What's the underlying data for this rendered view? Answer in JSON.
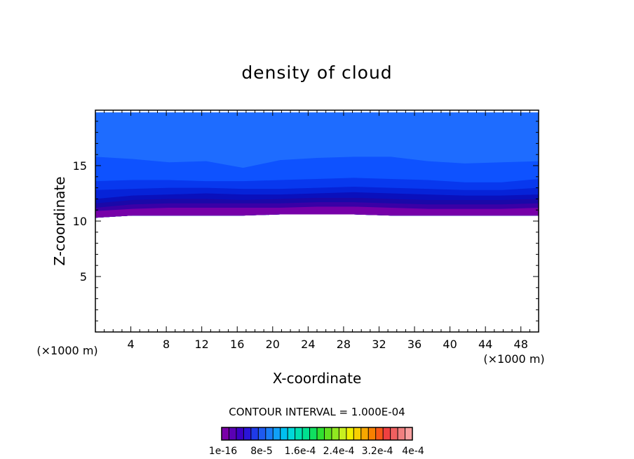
{
  "chart_data": {
    "type": "heatmap",
    "title": "density of cloud",
    "xlabel": "X-coordinate",
    "ylabel": "Z-coordinate",
    "x_unit": "(×1000 m)",
    "y_unit": "(×1000 m)",
    "xlim": [
      0,
      50
    ],
    "ylim": [
      0,
      20
    ],
    "x_ticks": [
      "4",
      "8",
      "12",
      "16",
      "20",
      "24",
      "28",
      "32",
      "36",
      "40",
      "44",
      "48"
    ],
    "y_ticks": [
      "5",
      "10",
      "15"
    ],
    "contour_interval_text": "CONTOUR INTERVAL = 1.000E-04",
    "colorbar_labels": [
      "1e-16",
      "8e-5",
      "1.6e-4",
      "2.4e-4",
      "3.2e-4",
      "4e-4"
    ],
    "colorbar_colors": [
      "#7a00a8",
      "#5a00b4",
      "#3c00c4",
      "#2a14d8",
      "#1f3ae8",
      "#1e5af0",
      "#1a7cf6",
      "#10a0f8",
      "#00c0f0",
      "#00d8d8",
      "#00e0b0",
      "#00e090",
      "#10e060",
      "#30e030",
      "#60e020",
      "#90e820",
      "#c8f020",
      "#f0f000",
      "#f8d000",
      "#f8a800",
      "#f88000",
      "#f85818",
      "#f04040",
      "#f06060",
      "#f08080",
      "#f8a0a0"
    ],
    "bands": [
      {
        "color": "#1e6cff",
        "top": [
          19.8,
          19.8,
          19.8,
          19.8,
          19.8,
          19.8,
          19.8,
          19.8,
          19.8,
          19.8,
          19.8,
          19.8,
          19.8
        ]
      },
      {
        "color": "#0e52ff",
        "top": [
          15.8,
          15.6,
          15.3,
          15.4,
          14.8,
          15.5,
          15.7,
          15.8,
          15.8,
          15.4,
          15.2,
          15.3,
          15.4
        ]
      },
      {
        "color": "#0838ee",
        "top": [
          13.6,
          13.7,
          13.7,
          13.6,
          13.6,
          13.7,
          13.8,
          13.9,
          13.8,
          13.7,
          13.5,
          13.5,
          13.8
        ]
      },
      {
        "color": "#0623d8",
        "top": [
          12.8,
          12.9,
          13.0,
          13.0,
          12.9,
          12.9,
          13.0,
          13.1,
          13.0,
          12.9,
          12.8,
          12.8,
          13.0
        ]
      },
      {
        "color": "#0a10bc",
        "top": [
          12.0,
          12.3,
          12.4,
          12.5,
          12.4,
          12.4,
          12.5,
          12.6,
          12.5,
          12.4,
          12.3,
          12.3,
          12.4
        ]
      },
      {
        "color": "#1a08a8",
        "top": [
          11.6,
          11.9,
          12.0,
          12.0,
          11.9,
          12.0,
          12.1,
          12.1,
          12.0,
          11.9,
          11.9,
          11.9,
          12.0
        ]
      },
      {
        "color": "#3a00a6",
        "top": [
          11.2,
          11.5,
          11.6,
          11.6,
          11.6,
          11.6,
          11.7,
          11.7,
          11.6,
          11.5,
          11.5,
          11.5,
          11.6
        ]
      },
      {
        "color": "#7700a8",
        "top": [
          10.9,
          11.1,
          11.2,
          11.2,
          11.2,
          11.2,
          11.3,
          11.3,
          11.2,
          11.1,
          11.1,
          11.1,
          11.2
        ]
      }
    ],
    "cloud_base": [
      10.3,
      10.5,
      10.5,
      10.5,
      10.5,
      10.6,
      10.6,
      10.6,
      10.5,
      10.5,
      10.5,
      10.5,
      10.5
    ]
  }
}
